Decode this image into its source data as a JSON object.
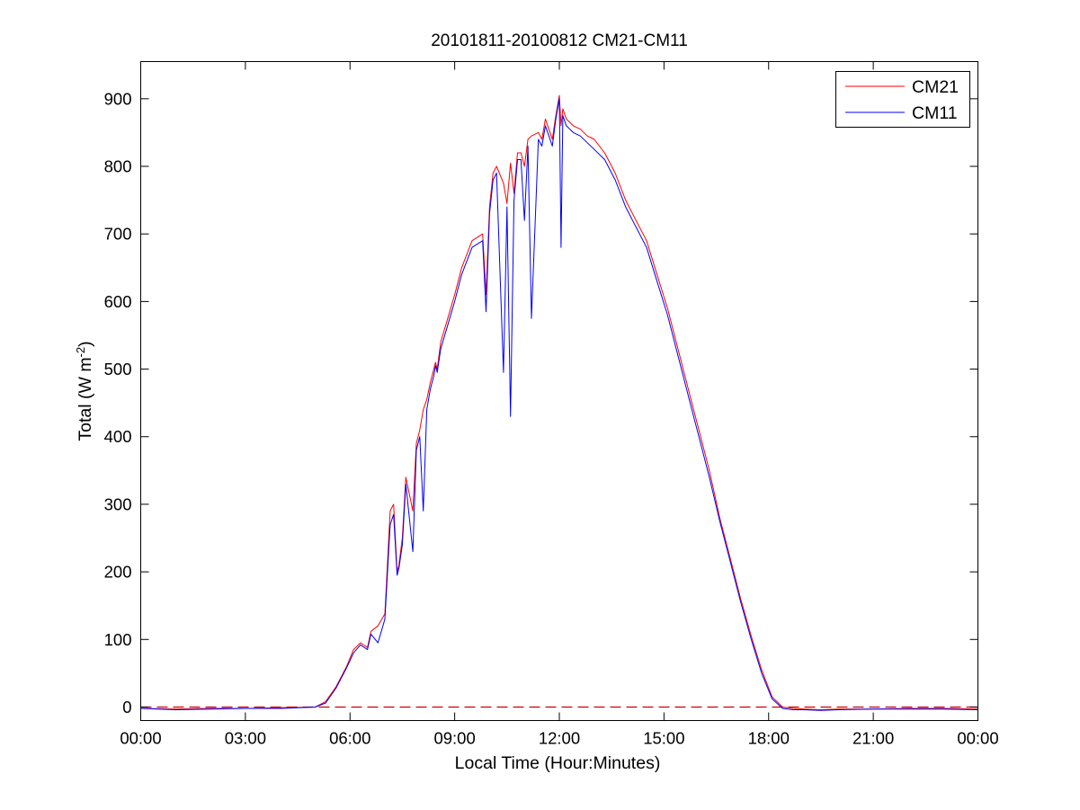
{
  "chart_data": {
    "type": "line",
    "title": "20101811-20100812 CM21-CM11",
    "xlabel": "Local Time (Hour:Minutes)",
    "ylabel": {
      "prefix": "Total (W m",
      "superscript": "-2",
      "suffix": ")"
    },
    "x_unit": "hours",
    "xlim": [
      0,
      24
    ],
    "ylim": [
      -20,
      955
    ],
    "x_ticks": [
      0,
      3,
      6,
      9,
      12,
      15,
      18,
      21,
      24
    ],
    "x_tick_labels": [
      "00:00",
      "03:00",
      "06:00",
      "09:00",
      "12:00",
      "15:00",
      "18:00",
      "21:00",
      "00:00"
    ],
    "y_ticks": [
      0,
      100,
      200,
      300,
      400,
      500,
      600,
      700,
      800,
      900
    ],
    "y_tick_labels": [
      "0",
      "100",
      "200",
      "300",
      "400",
      "500",
      "600",
      "700",
      "800",
      "900"
    ],
    "grid": false,
    "legend_position": "top-right",
    "reference_line": {
      "y": 0,
      "style": "dashed",
      "color": "#cc0000"
    },
    "series": [
      {
        "name": "CM21",
        "color": "#ff0000",
        "x": [
          0,
          1,
          2,
          3,
          4,
          5,
          5.3,
          5.6,
          5.9,
          6.1,
          6.3,
          6.5,
          6.6,
          6.8,
          7.0,
          7.15,
          7.25,
          7.35,
          7.4,
          7.5,
          7.6,
          7.8,
          7.9,
          8.0,
          8.1,
          8.2,
          8.3,
          8.4,
          8.45,
          8.5,
          8.6,
          8.8,
          9.0,
          9.2,
          9.5,
          9.8,
          9.9,
          10.0,
          10.1,
          10.2,
          10.4,
          10.5,
          10.6,
          10.7,
          10.8,
          10.9,
          11.0,
          11.1,
          11.2,
          11.4,
          11.5,
          11.6,
          11.7,
          11.8,
          11.9,
          12.0,
          12.05,
          12.1,
          12.2,
          12.4,
          12.6,
          12.8,
          13.0,
          13.3,
          13.6,
          13.9,
          14.2,
          14.5,
          14.8,
          15.1,
          15.4,
          15.7,
          16.0,
          16.3,
          16.6,
          16.9,
          17.2,
          17.5,
          17.8,
          18.1,
          18.4,
          18.7,
          19.0,
          19.5,
          20,
          21,
          22,
          23,
          24
        ],
        "y": [
          -2,
          -3,
          -2,
          -2,
          -1,
          0,
          8,
          30,
          60,
          85,
          95,
          88,
          112,
          120,
          138,
          290,
          300,
          200,
          210,
          250,
          340,
          290,
          390,
          410,
          440,
          455,
          480,
          500,
          510,
          500,
          540,
          575,
          610,
          650,
          690,
          700,
          610,
          740,
          790,
          800,
          775,
          745,
          805,
          760,
          820,
          820,
          800,
          840,
          845,
          850,
          840,
          870,
          855,
          840,
          875,
          905,
          860,
          885,
          870,
          860,
          855,
          845,
          840,
          820,
          790,
          750,
          720,
          690,
          640,
          590,
          530,
          470,
          410,
          350,
          280,
          220,
          160,
          105,
          55,
          15,
          0,
          -2,
          -3,
          -4,
          -3,
          -3,
          -2,
          -2,
          -3
        ]
      },
      {
        "name": "CM11",
        "color": "#0000ff",
        "x": [
          0,
          1,
          2,
          3,
          4,
          5,
          5.3,
          5.6,
          5.9,
          6.1,
          6.3,
          6.5,
          6.6,
          6.8,
          7.0,
          7.15,
          7.25,
          7.35,
          7.4,
          7.5,
          7.6,
          7.8,
          7.9,
          8.0,
          8.1,
          8.2,
          8.3,
          8.4,
          8.45,
          8.5,
          8.6,
          8.8,
          9.0,
          9.2,
          9.5,
          9.8,
          9.9,
          10.0,
          10.1,
          10.2,
          10.4,
          10.5,
          10.6,
          10.7,
          10.8,
          10.9,
          11.0,
          11.1,
          11.2,
          11.4,
          11.5,
          11.6,
          11.7,
          11.8,
          11.9,
          12.0,
          12.05,
          12.1,
          12.2,
          12.4,
          12.6,
          12.8,
          13.0,
          13.3,
          13.6,
          13.9,
          14.2,
          14.5,
          14.8,
          15.1,
          15.4,
          15.7,
          16.0,
          16.3,
          16.6,
          16.9,
          17.2,
          17.5,
          17.8,
          18.1,
          18.4,
          18.7,
          19.0,
          19.5,
          20,
          21,
          22,
          23,
          24
        ],
        "y": [
          -2,
          -4,
          -3,
          -2,
          -2,
          0,
          6,
          28,
          58,
          80,
          92,
          85,
          108,
          95,
          130,
          270,
          285,
          195,
          205,
          240,
          330,
          230,
          380,
          400,
          290,
          440,
          470,
          490,
          505,
          495,
          530,
          565,
          600,
          640,
          680,
          690,
          585,
          730,
          780,
          790,
          495,
          740,
          430,
          750,
          810,
          810,
          720,
          830,
          575,
          840,
          830,
          860,
          845,
          830,
          870,
          900,
          680,
          875,
          860,
          850,
          845,
          835,
          825,
          810,
          780,
          740,
          710,
          680,
          630,
          580,
          520,
          460,
          400,
          340,
          275,
          215,
          155,
          100,
          50,
          12,
          -2,
          -4,
          -4,
          -5,
          -4,
          -3,
          -3,
          -3,
          -4
        ]
      }
    ]
  }
}
